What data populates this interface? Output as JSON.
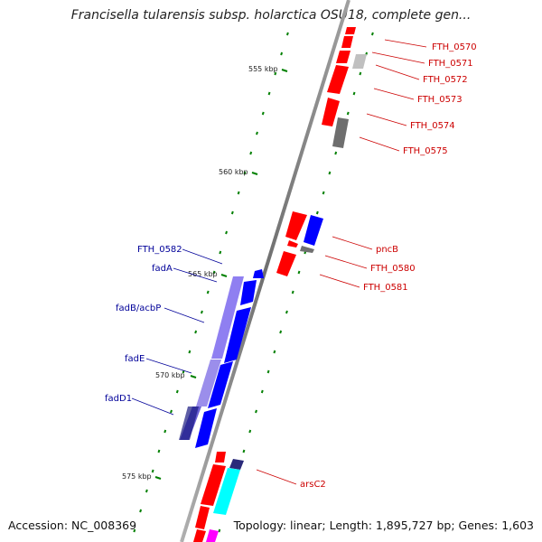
{
  "header": {
    "title": "Francisella tularensis subsp. holarctica OSU18, complete gen..."
  },
  "footer": {
    "accession": "Accession: NC_008369",
    "summary": "Topology: linear; Length: 1,895,727 bp; Genes: 1,603"
  },
  "scale": {
    "unit": "kbp",
    "labels": [
      "555 kbp",
      "560 kbp",
      "565 kbp",
      "570 kbp",
      "575 kbp"
    ]
  },
  "colors": {
    "backbone": "#808080",
    "forward_gene": "#ff0000",
    "reverse_gene": "#0000ff",
    "pseudo_gene": "#808080",
    "forward_label": "#cc0000",
    "reverse_label": "#000099",
    "tick": "#008000",
    "operon_block": "#7b68ee",
    "cyan_gene": "#00ffff",
    "magenta_gene": "#ff00ff"
  },
  "gene_labels": {
    "forward": [
      "FTH_0570",
      "FTH_0571",
      "FTH_0572",
      "FTH_0573",
      "FTH_0574",
      "FTH_0575",
      "pncB",
      "FTH_0580",
      "FTH_0581",
      "arsC2"
    ],
    "reverse": [
      "FTH_0582",
      "fadA",
      "fadB/acbP",
      "fadE",
      "fadD1"
    ]
  }
}
